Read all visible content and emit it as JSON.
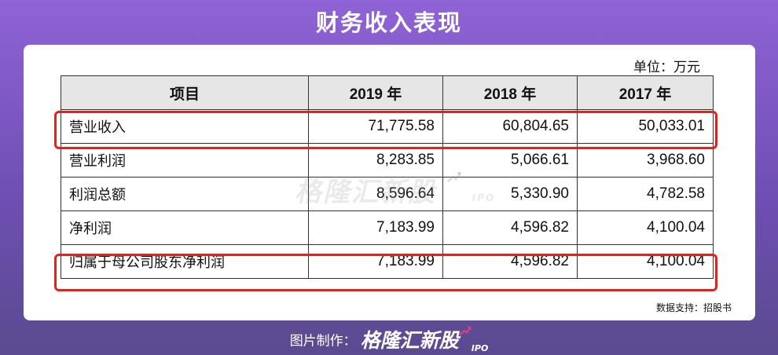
{
  "title": "财务收入表现",
  "unit": "单位：万元",
  "chart_data": {
    "type": "table",
    "columns": [
      "项目",
      "2019 年",
      "2018 年",
      "2017 年"
    ],
    "rows": [
      {
        "label": "营业收入",
        "values": [
          "71,775.58",
          "60,804.65",
          "50,033.01"
        ]
      },
      {
        "label": "营业利润",
        "values": [
          "8,283.85",
          "5,066.61",
          "3,968.60"
        ]
      },
      {
        "label": "利润总额",
        "values": [
          "8,596.64",
          "5,330.90",
          "4,782.58"
        ]
      },
      {
        "label": "净利润",
        "values": [
          "7,183.99",
          "4,596.82",
          "4,100.04"
        ]
      },
      {
        "label": "归属于母公司股东净利润",
        "values": [
          "7,183.99",
          "4,596.82",
          "4,100.04"
        ]
      }
    ],
    "highlighted_rows": [
      "营业收入",
      "归属于母公司股东净利润"
    ]
  },
  "watermark": {
    "brand": "格隆汇新股",
    "suffix": "IPO"
  },
  "source": "数据支持：招股书",
  "footer": {
    "credit": "图片制作：",
    "brand": "格隆汇新股",
    "suffix": "IPO"
  },
  "colors": {
    "highlight": "#e8201a",
    "header_bg": "#e6e6e6",
    "bg_top": "#8f63d6",
    "accent": "#e0407a"
  }
}
